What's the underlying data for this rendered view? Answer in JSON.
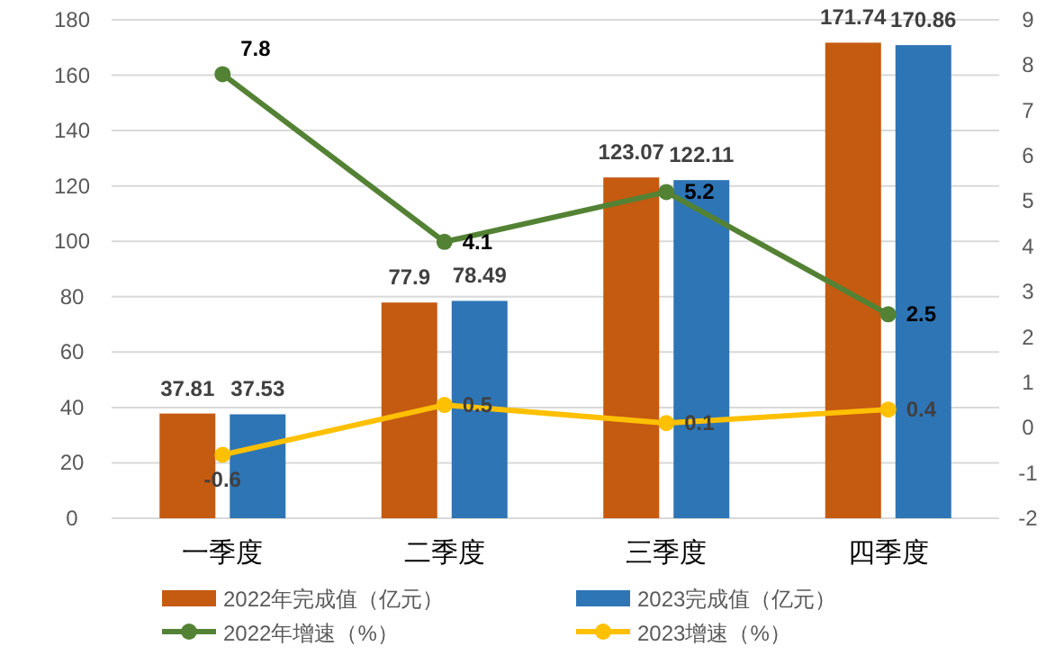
{
  "chart_data": {
    "type": "bar",
    "categories": [
      "一季度",
      "二季度",
      "三季度",
      "四季度"
    ],
    "series": [
      {
        "name": "2022年完成值（亿元）",
        "color": "#c55a11",
        "values": [
          37.81,
          77.9,
          123.07,
          171.74
        ]
      },
      {
        "name": "2023完成值（亿元）",
        "color": "#2e75b6",
        "values": [
          37.53,
          78.49,
          122.11,
          170.86
        ]
      },
      {
        "name": "2022年增速（%）",
        "type": "line",
        "axis": "y2",
        "color": "#548235",
        "values": [
          7.8,
          4.1,
          5.2,
          2.5
        ]
      },
      {
        "name": "2023增速（%）",
        "type": "line",
        "axis": "y2",
        "color": "#ffc000",
        "values": [
          -0.6,
          0.5,
          0.1,
          0.4
        ]
      }
    ],
    "ylim": [
      0,
      180
    ],
    "yticks": [
      0,
      20,
      40,
      60,
      80,
      100,
      120,
      140,
      160,
      180
    ],
    "y2lim": [
      -2,
      9
    ],
    "y2ticks": [
      -2,
      -1,
      0,
      1,
      2,
      3,
      4,
      5,
      6,
      7,
      8,
      9
    ],
    "grid": "y",
    "legend": "bottom",
    "marker": "circle",
    "data_labels": true
  }
}
